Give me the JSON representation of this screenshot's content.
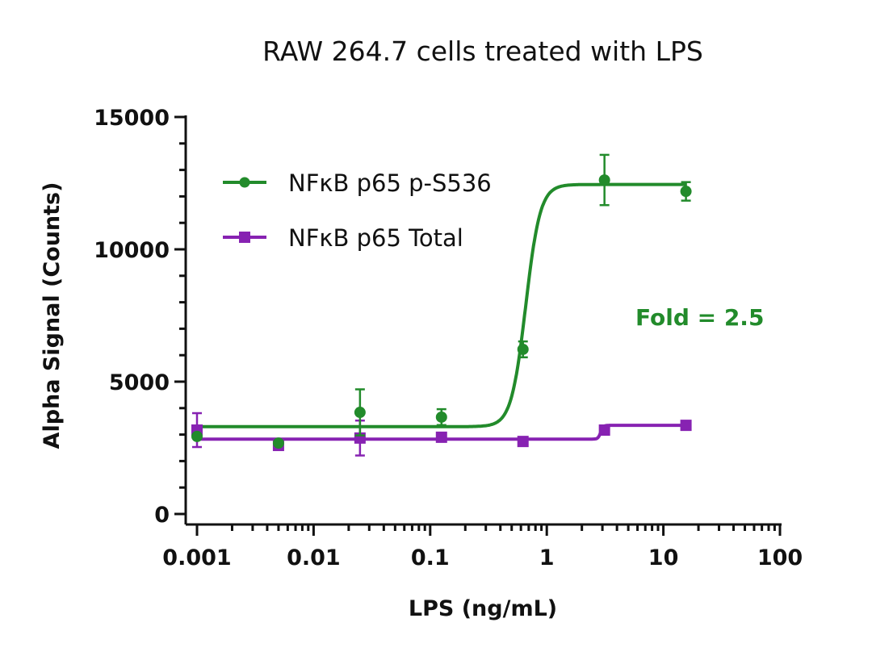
{
  "chart_data": {
    "type": "scatter",
    "title": "RAW 264.7 cells treated with LPS",
    "xlabel": "LPS (ng/mL)",
    "ylabel": "Alpha Signal (Counts)",
    "xscale": "log",
    "xlim": [
      0.001,
      100
    ],
    "ylim": [
      0,
      15000
    ],
    "xticks": [
      0.001,
      0.01,
      0.1,
      1,
      10,
      100
    ],
    "xtick_labels": [
      "0.001",
      "0.01",
      "0.1",
      "1",
      "10",
      "100"
    ],
    "yticks": [
      0,
      5000,
      10000,
      15000
    ],
    "ytick_labels": [
      "0",
      "5000",
      "10000",
      "15000"
    ],
    "grid": false,
    "legend_position": "top-left",
    "annotation": "Fold = 2.5",
    "series": [
      {
        "name": "NFκB p65 p-S536",
        "color": "#228B2B",
        "marker": "circle",
        "x": [
          0.001,
          0.005,
          0.025,
          0.125,
          0.625,
          3.125,
          15.625
        ],
        "y": [
          2930,
          2680,
          3840,
          3660,
          6220,
          12620,
          12190
        ],
        "error": [
          0,
          0,
          870,
          300,
          300,
          950,
          350
        ],
        "fit": {
          "bottom": 3300,
          "top": 12450,
          "ec50": 0.66,
          "hill": 7
        }
      },
      {
        "name": "NFκB p65 Total",
        "color": "#8722B2",
        "marker": "square",
        "x": [
          0.001,
          0.005,
          0.025,
          0.125,
          0.625,
          3.125,
          15.625
        ],
        "y": [
          3170,
          2590,
          2870,
          2900,
          2740,
          3170,
          3350
        ],
        "error": [
          640,
          0,
          660,
          0,
          0,
          0,
          0
        ],
        "fit": {
          "bottom": 2830,
          "top": 3350,
          "ec50": 2.9,
          "hill": 40
        }
      }
    ]
  }
}
